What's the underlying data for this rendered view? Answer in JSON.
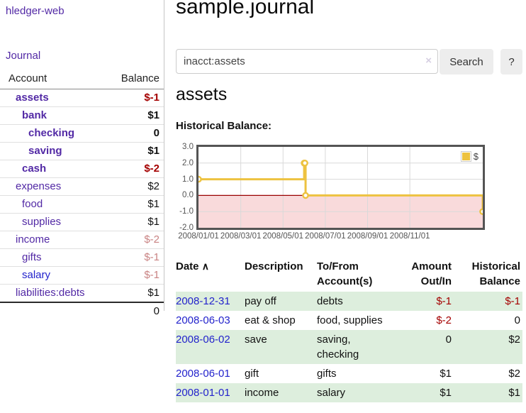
{
  "app": {
    "title": "hledger-web",
    "nav_journal": "Journal"
  },
  "colors": {
    "link_purple": "#5229a5",
    "link_blue": "#2323cc",
    "negative_red": "#a40000",
    "negative_muted_red": "#c98383",
    "row_stripe_green": "#ddeedd",
    "button_gray": "#ededed"
  },
  "sidebar": {
    "col_account": "Account",
    "col_balance": "Balance",
    "accounts": [
      {
        "name": "assets",
        "depth": 1,
        "balance": "$-1",
        "bold": true,
        "negative": true,
        "muted": false,
        "blue": false
      },
      {
        "name": "bank",
        "depth": 2,
        "balance": "$1",
        "bold": true,
        "negative": false,
        "muted": false,
        "blue": false
      },
      {
        "name": "checking",
        "depth": 3,
        "balance": "0",
        "bold": true,
        "negative": false,
        "muted": false,
        "blue": false
      },
      {
        "name": "saving",
        "depth": 3,
        "balance": "$1",
        "bold": true,
        "negative": false,
        "muted": false,
        "blue": false
      },
      {
        "name": "cash",
        "depth": 2,
        "balance": "$-2",
        "bold": true,
        "negative": true,
        "muted": false,
        "blue": false
      },
      {
        "name": "expenses",
        "depth": 1,
        "balance": "$2",
        "bold": false,
        "negative": false,
        "muted": false,
        "blue": false
      },
      {
        "name": "food",
        "depth": 2,
        "balance": "$1",
        "bold": false,
        "negative": false,
        "muted": false,
        "blue": false
      },
      {
        "name": "supplies",
        "depth": 2,
        "balance": "$1",
        "bold": false,
        "negative": false,
        "muted": false,
        "blue": false
      },
      {
        "name": "income",
        "depth": 1,
        "balance": "$-2",
        "bold": false,
        "negative": true,
        "muted": true,
        "blue": false
      },
      {
        "name": "gifts",
        "depth": 2,
        "balance": "$-1",
        "bold": false,
        "negative": true,
        "muted": true,
        "blue": false
      },
      {
        "name": "salary",
        "depth": 2,
        "balance": "$-1",
        "bold": false,
        "negative": true,
        "muted": true,
        "blue": true
      },
      {
        "name": "liabilities:debts",
        "depth": 1,
        "balance": "$1",
        "bold": false,
        "negative": false,
        "muted": false,
        "blue": false
      }
    ],
    "total": "0"
  },
  "header": {
    "title": "sample.journal"
  },
  "search": {
    "value": "inacct:assets",
    "clear_icon": "×",
    "button": "Search",
    "help_button": "?"
  },
  "account_page": {
    "heading": "assets",
    "chart_label": "Historical Balance:"
  },
  "chart_data": {
    "type": "line",
    "title": "Historical Balance:",
    "step": true,
    "series": [
      {
        "name": "$",
        "color": "#edc240",
        "points": [
          [
            "2008-01-01",
            1
          ],
          [
            "2008-06-01",
            2
          ],
          [
            "2008-06-02",
            2
          ],
          [
            "2008-06-03",
            0
          ],
          [
            "2008-12-31",
            -1
          ]
        ]
      }
    ],
    "ylim": [
      -2,
      3
    ],
    "y_ticks": [
      "3.0",
      "2.0",
      "1.0",
      "0.0",
      "-1.0",
      "-2.0"
    ],
    "x_ticks": [
      {
        "label": "2008/01/01",
        "month": 0
      },
      {
        "label": "2008/03/01",
        "month": 2
      },
      {
        "label": "2008/05/01",
        "month": 4
      },
      {
        "label": "2008/07/01",
        "month": 6
      },
      {
        "label": "2008/09/01",
        "month": 8
      },
      {
        "label": "2008/11/01",
        "month": 10
      }
    ],
    "x_range_months": [
      0,
      13.45
    ],
    "extend_last_point_to_right_edge": true,
    "grid": true,
    "gridline_color": "#d9d9d9",
    "negative_region_color": "#f9dadb",
    "zero_line_color": "#990000",
    "legend_position": "top-right",
    "legend": {
      "label": "$",
      "swatch_color": "#edc240"
    }
  },
  "register": {
    "columns": {
      "date": "Date",
      "sort_icon": "∧",
      "description": "Description",
      "accounts": "To/From Account(s)",
      "amount": "Amount Out/In",
      "balance": "Historical Balance"
    },
    "rows": [
      {
        "date": "2008-12-31",
        "description": "pay off",
        "accounts": "debts",
        "amount": "$-1",
        "amount_neg": true,
        "balance": "$-1",
        "balance_neg": true
      },
      {
        "date": "2008-06-03",
        "description": "eat & shop",
        "accounts": "food, supplies",
        "amount": "$-2",
        "amount_neg": true,
        "balance": "0",
        "balance_neg": false
      },
      {
        "date": "2008-06-02",
        "description": "save",
        "accounts": "saving, checking",
        "amount": "0",
        "amount_neg": false,
        "balance": "$2",
        "balance_neg": false
      },
      {
        "date": "2008-06-01",
        "description": "gift",
        "accounts": "gifts",
        "amount": "$1",
        "amount_neg": false,
        "balance": "$2",
        "balance_neg": false
      },
      {
        "date": "2008-01-01",
        "description": "income",
        "accounts": "salary",
        "amount": "$1",
        "amount_neg": false,
        "balance": "$1",
        "balance_neg": false
      }
    ]
  }
}
